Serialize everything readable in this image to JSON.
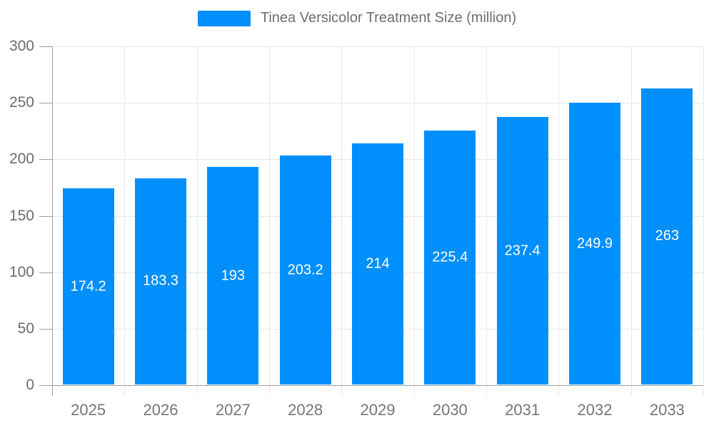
{
  "chart_data": {
    "type": "bar",
    "title": "Tinea Versicolor Treatment Size (million)",
    "categories": [
      "2025",
      "2026",
      "2027",
      "2028",
      "2029",
      "2030",
      "2031",
      "2032",
      "2033"
    ],
    "values": [
      174.2,
      183.3,
      193,
      203.2,
      214,
      225.4,
      237.4,
      249.9,
      263
    ],
    "value_labels": [
      "174.2",
      "183.3",
      "193",
      "203.2",
      "214",
      "225.4",
      "237.4",
      "249.9",
      "263"
    ],
    "xlabel": "",
    "ylabel": "",
    "ylim": [
      0,
      300
    ],
    "yticks": [
      0,
      50,
      100,
      150,
      200,
      250,
      300
    ],
    "grid": "on",
    "legend_position": "top-center",
    "bar_color": "#008FFB",
    "data_label_color": "#ffffff",
    "axis_color": "#9e9e9e",
    "grid_color": "#e7e7e7",
    "tick_label_color": "#6c6c6c",
    "legend_text_color": "#6e6e6e"
  }
}
